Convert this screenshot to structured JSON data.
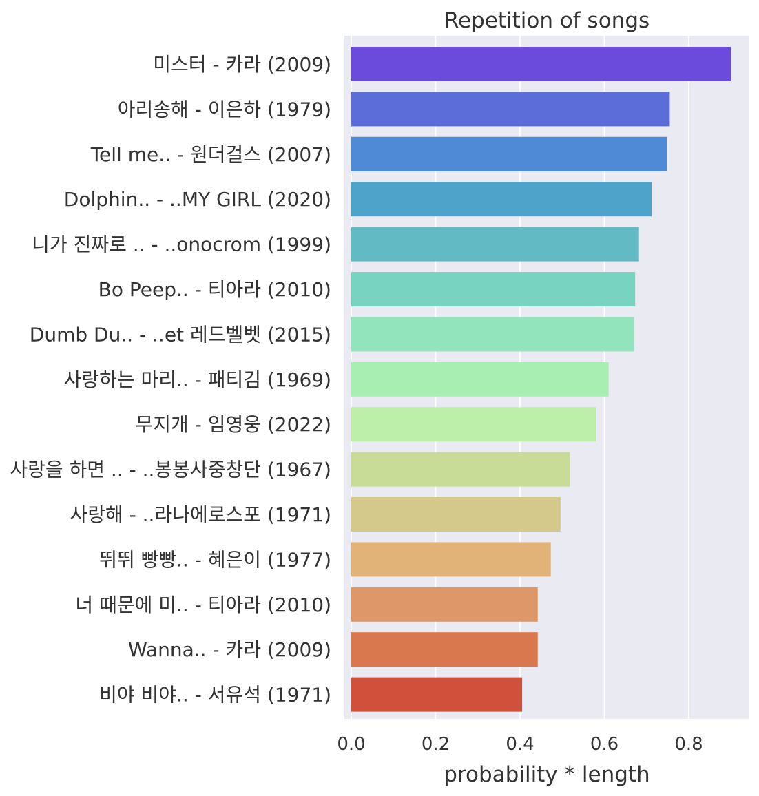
{
  "chart_data": {
    "type": "bar",
    "orientation": "horizontal",
    "title": "Repetition of songs",
    "xlabel": "probability * length",
    "ylabel": "",
    "xlim": [
      0,
      0.94
    ],
    "xticks": [
      0.0,
      0.2,
      0.4,
      0.6,
      0.8
    ],
    "xtick_labels": [
      "0.0",
      "0.2",
      "0.4",
      "0.6",
      "0.8"
    ],
    "grid": true,
    "categories": [
      "미스터 - 카라 (2009)",
      "아리송해 - 이은하 (1979)",
      "Tell me.. - 원더걸스 (2007)",
      "Dolphin.. - ..MY GIRL (2020)",
      "니가 진짜로 .. - ..onocrom (1999)",
      "Bo Peep.. - 티아라 (2010)",
      "Dumb Du.. - ..et 레드벨벳 (2015)",
      "사랑하는 마리.. - 패티김 (1969)",
      "무지개 - 임영웅 (2022)",
      "사랑을 하면 .. - ..봉봉사중창단 (1967)",
      "사랑해 - ..라나에로스포 (1971)",
      "뛰뛰 빵빵.. - 혜은이 (1977)",
      "너 때문에 미.. - 티아라 (2010)",
      "Wanna.. - 카라 (2009)",
      "비야 비야.. - 서유석 (1971)"
    ],
    "values": [
      0.9,
      0.755,
      0.748,
      0.712,
      0.682,
      0.673,
      0.67,
      0.61,
      0.58,
      0.518,
      0.496,
      0.473,
      0.442,
      0.442,
      0.405
    ],
    "colors": [
      "#6a4bdc",
      "#5c6dda",
      "#4e8ad6",
      "#4ea3cb",
      "#62bac5",
      "#78d4c0",
      "#92e4bd",
      "#a8eeb3",
      "#bdefaa",
      "#c8dc98",
      "#d4c88b",
      "#e2b378",
      "#de9769",
      "#d9784f",
      "#d1503c"
    ]
  }
}
